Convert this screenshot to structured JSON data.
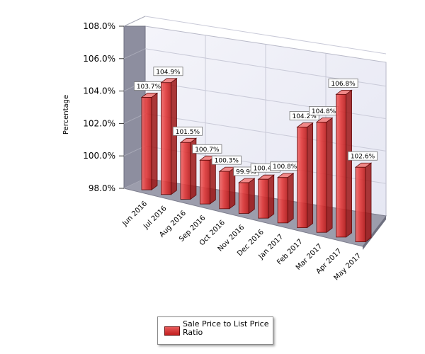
{
  "chart_data": {
    "type": "bar",
    "ylabel": "Percentage",
    "ylim": [
      98.0,
      108.0
    ],
    "yticks": [
      "98.0%",
      "100.0%",
      "102.0%",
      "104.0%",
      "106.0%",
      "108.0%"
    ],
    "ytick_values": [
      98,
      100,
      102,
      104,
      106,
      108
    ],
    "categories": [
      "Jun 2016",
      "Jul 2016",
      "Aug 2016",
      "Sep 2016",
      "Oct 2016",
      "Nov 2016",
      "Dec 2016",
      "Jan 2017",
      "Feb 2017",
      "Mar 2017",
      "Apr 2017",
      "May 2017"
    ],
    "series": [
      {
        "name": "Sale Price to List Price Ratio",
        "values": [
          103.7,
          104.9,
          101.5,
          100.7,
          100.3,
          99.9,
          100.4,
          100.8,
          104.2,
          104.8,
          106.8,
          102.6
        ],
        "labels": [
          "103.7%",
          "104.9%",
          "101.5%",
          "100.7%",
          "100.3%",
          "99.9%",
          "100.4%",
          "100.8%",
          "104.2%",
          "104.8%",
          "106.8%",
          "102.6%"
        ]
      }
    ],
    "grid": true,
    "legend": "bottom",
    "bar_color": "#d9262b"
  }
}
